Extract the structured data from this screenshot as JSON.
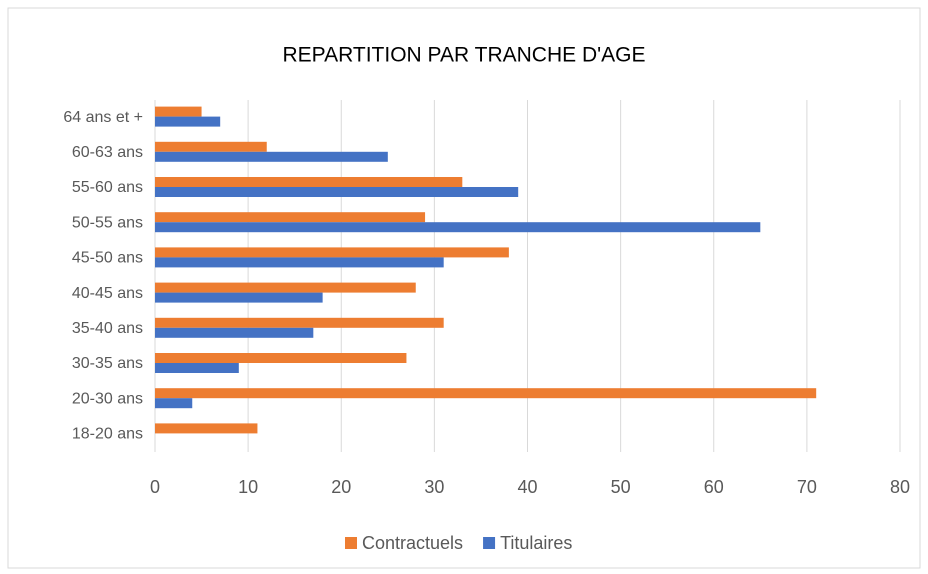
{
  "chart_data": {
    "type": "hbar",
    "title": "REPARTITION PAR TRANCHE D'AGE",
    "categories": [
      "64 ans et +",
      "60-63 ans",
      "55-60 ans",
      "50-55 ans",
      "45-50 ans",
      "40-45 ans",
      "35-40 ans",
      "30-35 ans",
      "20-30 ans",
      "18-20 ans"
    ],
    "series": [
      {
        "name": "Contractuels",
        "color": "#ed7d31",
        "values": [
          5,
          12,
          33,
          29,
          38,
          28,
          31,
          27,
          71,
          11
        ]
      },
      {
        "name": "Titulaires",
        "color": "#4472c4",
        "values": [
          7,
          25,
          39,
          65,
          31,
          18,
          17,
          9,
          4,
          0
        ]
      }
    ],
    "xlim": [
      0,
      80
    ],
    "xticks": [
      0,
      10,
      20,
      30,
      40,
      50,
      60,
      70,
      80
    ],
    "grid": true,
    "legend": "bottom"
  }
}
